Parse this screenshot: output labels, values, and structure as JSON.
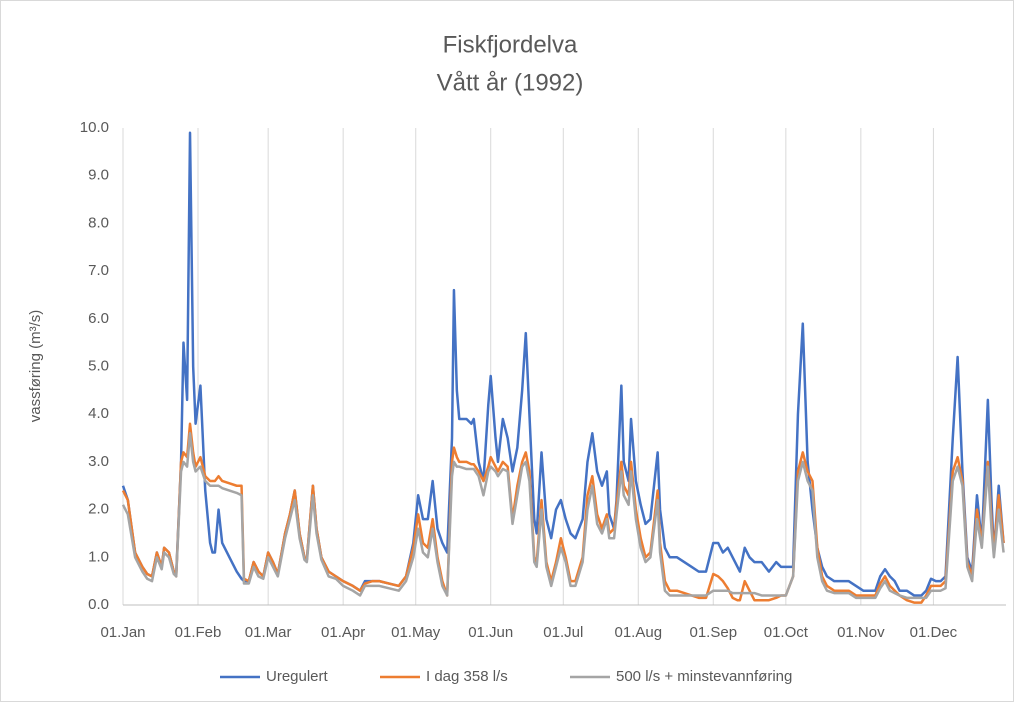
{
  "chart_data": {
    "type": "line",
    "title": "Fiskfjordelva",
    "subtitle": "Vått år (1992)",
    "y_label": "vassføring (m³/s)",
    "xlim": [
      0,
      365
    ],
    "xticks": [
      {
        "value": 0,
        "label": "01.Jan"
      },
      {
        "value": 31,
        "label": "01.Feb"
      },
      {
        "value": 60,
        "label": "01.Mar"
      },
      {
        "value": 91,
        "label": "01.Apr"
      },
      {
        "value": 121,
        "label": "01.May"
      },
      {
        "value": 152,
        "label": "01.Jun"
      },
      {
        "value": 182,
        "label": "01.Jul"
      },
      {
        "value": 213,
        "label": "01.Aug"
      },
      {
        "value": 244,
        "label": "01.Sep"
      },
      {
        "value": 274,
        "label": "01.Oct"
      },
      {
        "value": 305,
        "label": "01.Nov"
      },
      {
        "value": 335,
        "label": "01.Dec"
      }
    ],
    "ylim": [
      0,
      10
    ],
    "yticks": [
      {
        "value": 0,
        "label": "0.0"
      },
      {
        "value": 1,
        "label": "1.0"
      },
      {
        "value": 2,
        "label": "2.0"
      },
      {
        "value": 3,
        "label": "3.0"
      },
      {
        "value": 4,
        "label": "4.0"
      },
      {
        "value": 5,
        "label": "5.0"
      },
      {
        "value": 6,
        "label": "6.0"
      },
      {
        "value": 7,
        "label": "7.0"
      },
      {
        "value": 8,
        "label": "8.0"
      },
      {
        "value": 9,
        "label": "9.0"
      },
      {
        "value": 10,
        "label": "10.0"
      }
    ],
    "grid": "x",
    "legend": "bottom",
    "x": [
      0,
      2,
      5,
      8,
      10,
      12,
      14,
      16,
      17,
      19,
      21,
      22,
      24,
      25,
      26.5,
      27.7,
      29,
      30,
      32,
      34,
      36,
      37,
      38,
      39.5,
      41,
      44,
      47,
      49,
      50,
      52,
      54,
      56,
      58,
      60,
      62,
      64,
      67,
      69,
      71,
      73,
      75,
      76,
      78.5,
      80,
      82,
      85,
      88,
      91,
      95,
      98,
      100,
      103,
      106,
      110,
      114,
      117,
      120,
      122,
      124,
      126,
      128,
      130,
      132,
      134,
      136,
      136.8,
      138,
      139,
      142,
      144,
      145,
      147,
      149,
      151,
      152,
      154,
      155,
      157,
      159,
      161,
      163,
      165,
      166.5,
      168,
      170,
      171,
      173,
      175,
      177,
      179,
      181,
      183,
      185,
      187,
      190,
      192,
      194,
      196,
      198,
      200,
      201,
      203,
      204,
      206,
      207,
      209,
      210,
      212,
      214,
      216,
      218,
      221,
      222,
      224,
      226,
      229,
      232,
      235,
      238,
      241,
      244,
      246,
      248,
      250,
      252,
      254,
      255,
      257,
      259,
      261,
      264,
      267,
      270,
      272,
      274,
      277,
      279,
      281,
      283,
      285,
      287,
      289,
      291,
      294,
      297,
      300,
      303,
      306,
      309,
      311,
      313,
      315,
      317,
      319,
      321,
      324,
      327,
      330,
      332,
      334,
      336,
      338,
      340,
      343,
      345,
      347,
      349,
      351,
      353,
      355,
      357.5,
      359,
      360,
      362,
      364
    ],
    "series": [
      {
        "name": "Uregulert",
        "color": "#4472c4",
        "values": [
          2.5,
          2.2,
          1.1,
          0.8,
          0.65,
          0.6,
          1.1,
          0.8,
          1.2,
          1.1,
          0.7,
          0.65,
          3.0,
          5.5,
          4.3,
          9.9,
          5.0,
          3.8,
          4.6,
          2.4,
          1.3,
          1.1,
          1.1,
          2.0,
          1.3,
          1.0,
          0.7,
          0.55,
          0.5,
          0.5,
          0.9,
          0.7,
          0.6,
          1.1,
          0.9,
          0.65,
          1.5,
          1.9,
          2.4,
          1.5,
          1.0,
          0.95,
          2.5,
          1.6,
          1.0,
          0.7,
          0.6,
          0.5,
          0.4,
          0.3,
          0.5,
          0.5,
          0.5,
          0.45,
          0.4,
          0.6,
          1.3,
          2.3,
          1.8,
          1.8,
          2.6,
          1.6,
          1.3,
          1.1,
          3.5,
          6.6,
          4.5,
          3.9,
          3.9,
          3.8,
          3.9,
          3.0,
          2.6,
          4.2,
          4.8,
          3.5,
          3.0,
          3.9,
          3.5,
          2.8,
          3.3,
          4.5,
          5.7,
          4.0,
          1.8,
          1.5,
          3.2,
          1.8,
          1.4,
          2.0,
          2.2,
          1.8,
          1.5,
          1.4,
          1.8,
          3.0,
          3.6,
          2.8,
          2.5,
          2.8,
          1.9,
          1.6,
          2.2,
          4.6,
          3.0,
          2.6,
          3.9,
          2.6,
          2.1,
          1.7,
          1.8,
          3.2,
          2.0,
          1.2,
          1.0,
          1.0,
          0.9,
          0.8,
          0.7,
          0.7,
          1.3,
          1.3,
          1.1,
          1.2,
          1.0,
          0.8,
          0.7,
          1.2,
          1.0,
          0.9,
          0.9,
          0.7,
          0.9,
          0.8,
          0.8,
          0.8,
          4.0,
          5.9,
          3.0,
          2.0,
          1.2,
          0.8,
          0.6,
          0.5,
          0.5,
          0.5,
          0.4,
          0.3,
          0.3,
          0.3,
          0.6,
          0.75,
          0.6,
          0.5,
          0.3,
          0.3,
          0.2,
          0.2,
          0.3,
          0.55,
          0.5,
          0.5,
          0.6,
          3.5,
          5.2,
          2.8,
          1.0,
          0.7,
          2.3,
          1.3,
          4.3,
          2.2,
          1.1,
          2.5,
          1.3
        ]
      },
      {
        "name": "I dag 358 l/s",
        "color": "#ed7d31",
        "values": [
          2.4,
          2.2,
          1.1,
          0.8,
          0.65,
          0.6,
          1.1,
          0.8,
          1.2,
          1.1,
          0.7,
          0.6,
          3.0,
          3.2,
          3.1,
          3.8,
          3.2,
          2.9,
          3.1,
          2.7,
          2.6,
          2.6,
          2.6,
          2.7,
          2.6,
          2.55,
          2.5,
          2.5,
          0.55,
          0.5,
          0.9,
          0.7,
          0.6,
          1.1,
          0.9,
          0.65,
          1.5,
          1.9,
          2.4,
          1.5,
          1.0,
          0.95,
          2.5,
          1.6,
          1.0,
          0.7,
          0.6,
          0.5,
          0.4,
          0.3,
          0.45,
          0.5,
          0.5,
          0.45,
          0.4,
          0.6,
          1.2,
          1.9,
          1.3,
          1.2,
          1.8,
          1.0,
          0.5,
          0.2,
          3.0,
          3.3,
          3.1,
          3.0,
          3.0,
          2.95,
          2.95,
          2.8,
          2.6,
          2.9,
          3.1,
          2.9,
          2.8,
          3.0,
          2.9,
          1.8,
          2.5,
          3.0,
          3.2,
          2.8,
          1.0,
          0.9,
          2.2,
          0.9,
          0.5,
          0.9,
          1.4,
          1.0,
          0.5,
          0.5,
          1.0,
          2.3,
          2.7,
          1.9,
          1.6,
          1.9,
          1.5,
          1.6,
          2.1,
          3.0,
          2.5,
          2.3,
          3.0,
          2.0,
          1.4,
          1.0,
          1.1,
          2.4,
          1.3,
          0.5,
          0.3,
          0.3,
          0.25,
          0.2,
          0.15,
          0.15,
          0.65,
          0.6,
          0.5,
          0.35,
          0.15,
          0.1,
          0.1,
          0.5,
          0.3,
          0.1,
          0.1,
          0.1,
          0.15,
          0.2,
          0.2,
          0.6,
          2.8,
          3.2,
          2.8,
          2.6,
          1.2,
          0.6,
          0.4,
          0.3,
          0.3,
          0.3,
          0.2,
          0.2,
          0.2,
          0.2,
          0.45,
          0.6,
          0.4,
          0.3,
          0.2,
          0.1,
          0.05,
          0.05,
          0.2,
          0.4,
          0.4,
          0.4,
          0.5,
          2.8,
          3.1,
          2.6,
          0.9,
          0.6,
          2.0,
          1.3,
          3.0,
          1.8,
          1.1,
          2.3,
          1.3
        ]
      },
      {
        "name": "500 l/s + minstevannføring",
        "color": "#a5a5a5",
        "values": [
          2.1,
          1.9,
          1.0,
          0.7,
          0.55,
          0.5,
          1.0,
          0.75,
          1.1,
          1.0,
          0.65,
          0.6,
          2.8,
          3.0,
          2.9,
          3.6,
          3.0,
          2.8,
          2.9,
          2.6,
          2.5,
          2.5,
          2.5,
          2.5,
          2.45,
          2.4,
          2.35,
          2.3,
          0.45,
          0.45,
          0.8,
          0.6,
          0.55,
          1.0,
          0.8,
          0.6,
          1.4,
          1.8,
          2.2,
          1.4,
          0.95,
          0.9,
          2.3,
          1.5,
          0.95,
          0.6,
          0.55,
          0.4,
          0.3,
          0.2,
          0.4,
          0.4,
          0.4,
          0.35,
          0.3,
          0.5,
          1.0,
          1.6,
          1.1,
          1.0,
          1.6,
          0.9,
          0.4,
          0.2,
          2.7,
          3.0,
          2.9,
          2.9,
          2.85,
          2.85,
          2.85,
          2.7,
          2.3,
          2.8,
          2.9,
          2.8,
          2.7,
          2.85,
          2.8,
          1.7,
          2.3,
          2.9,
          3.0,
          2.6,
          0.9,
          0.8,
          2.0,
          0.8,
          0.4,
          0.8,
          1.2,
          0.9,
          0.4,
          0.4,
          0.9,
          2.0,
          2.5,
          1.7,
          1.5,
          1.8,
          1.4,
          1.4,
          1.9,
          2.8,
          2.3,
          2.1,
          2.8,
          1.8,
          1.2,
          0.9,
          1.0,
          2.2,
          1.1,
          0.3,
          0.2,
          0.2,
          0.2,
          0.2,
          0.2,
          0.2,
          0.3,
          0.3,
          0.3,
          0.3,
          0.25,
          0.25,
          0.25,
          0.25,
          0.25,
          0.25,
          0.2,
          0.2,
          0.2,
          0.2,
          0.2,
          0.6,
          2.6,
          3.0,
          2.6,
          2.4,
          1.0,
          0.5,
          0.3,
          0.25,
          0.25,
          0.25,
          0.15,
          0.15,
          0.15,
          0.15,
          0.35,
          0.5,
          0.3,
          0.25,
          0.2,
          0.15,
          0.15,
          0.15,
          0.15,
          0.3,
          0.3,
          0.3,
          0.35,
          2.6,
          2.9,
          2.5,
          0.8,
          0.5,
          1.8,
          1.2,
          2.9,
          1.6,
          1.0,
          2.0,
          1.1
        ]
      }
    ]
  }
}
